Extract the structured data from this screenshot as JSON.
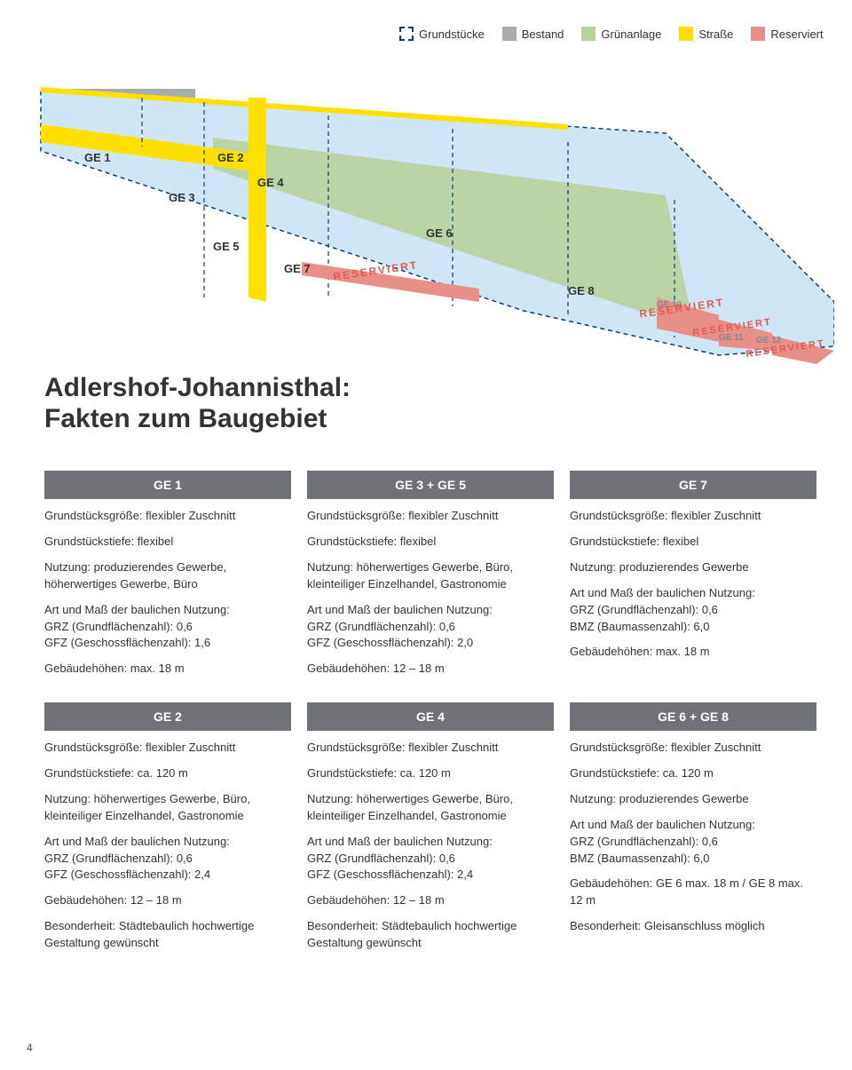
{
  "legend": {
    "items": [
      {
        "label": "Grundstücke",
        "fill": "#ffffff",
        "stroke": "#0a3d7a",
        "dashed": true
      },
      {
        "label": "Bestand",
        "fill": "#a7aead"
      },
      {
        "label": "Grünanlage",
        "fill": "#b8d29b"
      },
      {
        "label": "Straße",
        "fill": "#ffe000"
      },
      {
        "label": "Reserviert",
        "fill": "#e89088"
      }
    ]
  },
  "map": {
    "bg": "#ffffff",
    "plot_fill": "#cfe6f7",
    "plot_stroke": "#0a3d7a",
    "road_color": "#ffe000",
    "green_color": "#b8d29b",
    "bestand_color": "#a7aead",
    "reserved_color": "#e89088",
    "label_color": "#333333",
    "reserved_text": "RESERVIERT",
    "plots": {
      "ge1": "GE 1",
      "ge2": "GE 2",
      "ge3": "GE 3",
      "ge4": "GE 4",
      "ge5": "GE 5",
      "ge6": "GE 6",
      "ge7": "GE 7",
      "ge8": "GE 8",
      "ge10": "GE 10",
      "ge11": "GE 11",
      "ge12": "GE 12"
    }
  },
  "headline": {
    "line1": "Adlershof-Johannisthal:",
    "line2": "Fakten zum Baugebiet"
  },
  "cards": [
    {
      "title": "GE 1",
      "lines": [
        "Grundstücksgröße: flexibler Zuschnitt",
        "Grundstückstiefe: flexibel",
        "Nutzung: produzierendes Gewerbe, höherwertiges Gewerbe, Büro",
        "Art und Maß der baulichen Nutzung:\nGRZ (Grundflächenzahl): 0,6\nGFZ (Geschossflächenzahl): 1,6",
        "Gebäudehöhen: max. 18 m"
      ]
    },
    {
      "title": "GE 3 + GE 5",
      "lines": [
        "Grundstücksgröße: flexibler Zuschnitt",
        "Grundstückstiefe: flexibel",
        "Nutzung: höherwertiges Gewerbe, Büro, kleinteiliger Einzelhandel, Gastronomie",
        "Art und Maß der baulichen Nutzung:\nGRZ (Grundflächenzahl): 0,6\nGFZ (Geschossflächenzahl): 2,0",
        "Gebäudehöhen: 12 – 18 m"
      ]
    },
    {
      "title": "GE 7",
      "lines": [
        "Grundstücksgröße: flexibler Zuschnitt",
        "Grundstückstiefe: flexibel",
        "Nutzung: produzierendes Gewerbe",
        "Art und Maß der baulichen Nutzung:\nGRZ (Grundflächenzahl): 0,6\nBMZ (Baumassenzahl): 6,0",
        "Gebäudehöhen: max. 18 m"
      ]
    },
    {
      "title": "GE 2",
      "lines": [
        "Grundstücksgröße: flexibler Zuschnitt",
        "Grundstückstiefe: ca. 120 m",
        "Nutzung: höherwertiges Gewerbe, Büro, kleinteiliger Einzelhandel, Gastronomie",
        "Art und Maß der baulichen Nutzung:\nGRZ (Grundflächenzahl): 0,6\nGFZ (Geschossflächenzahl): 2,4",
        "Gebäudehöhen: 12 – 18 m",
        "Besonderheit: Städtebaulich hochwertige Gestaltung gewünscht"
      ]
    },
    {
      "title": "GE 4",
      "lines": [
        "Grundstücksgröße: flexibler Zuschnitt",
        "Grundstückstiefe: ca. 120 m",
        "Nutzung: höherwertiges Gewerbe, Büro, kleinteiliger Einzelhandel, Gastronomie",
        "Art und Maß der baulichen Nutzung:\nGRZ (Grundflächenzahl): 0,6\nGFZ (Geschossflächenzahl): 2,4",
        "Gebäudehöhen: 12 – 18 m",
        "Besonderheit: Städtebaulich hochwertige Gestaltung gewünscht"
      ]
    },
    {
      "title": "GE 6 + GE 8",
      "lines": [
        "Grundstücksgröße: flexibler Zuschnitt",
        "Grundstückstiefe: ca. 120 m",
        "Nutzung: produzierendes Gewerbe",
        "Art und Maß der baulichen Nutzung:\nGRZ (Grundflächenzahl): 0,6\nBMZ (Baumassenzahl): 6,0",
        "Gebäudehöhen: GE 6 max. 18 m / GE 8 max. 12 m",
        "Besonderheit: Gleisanschluss möglich"
      ]
    }
  ],
  "page_number": "4"
}
